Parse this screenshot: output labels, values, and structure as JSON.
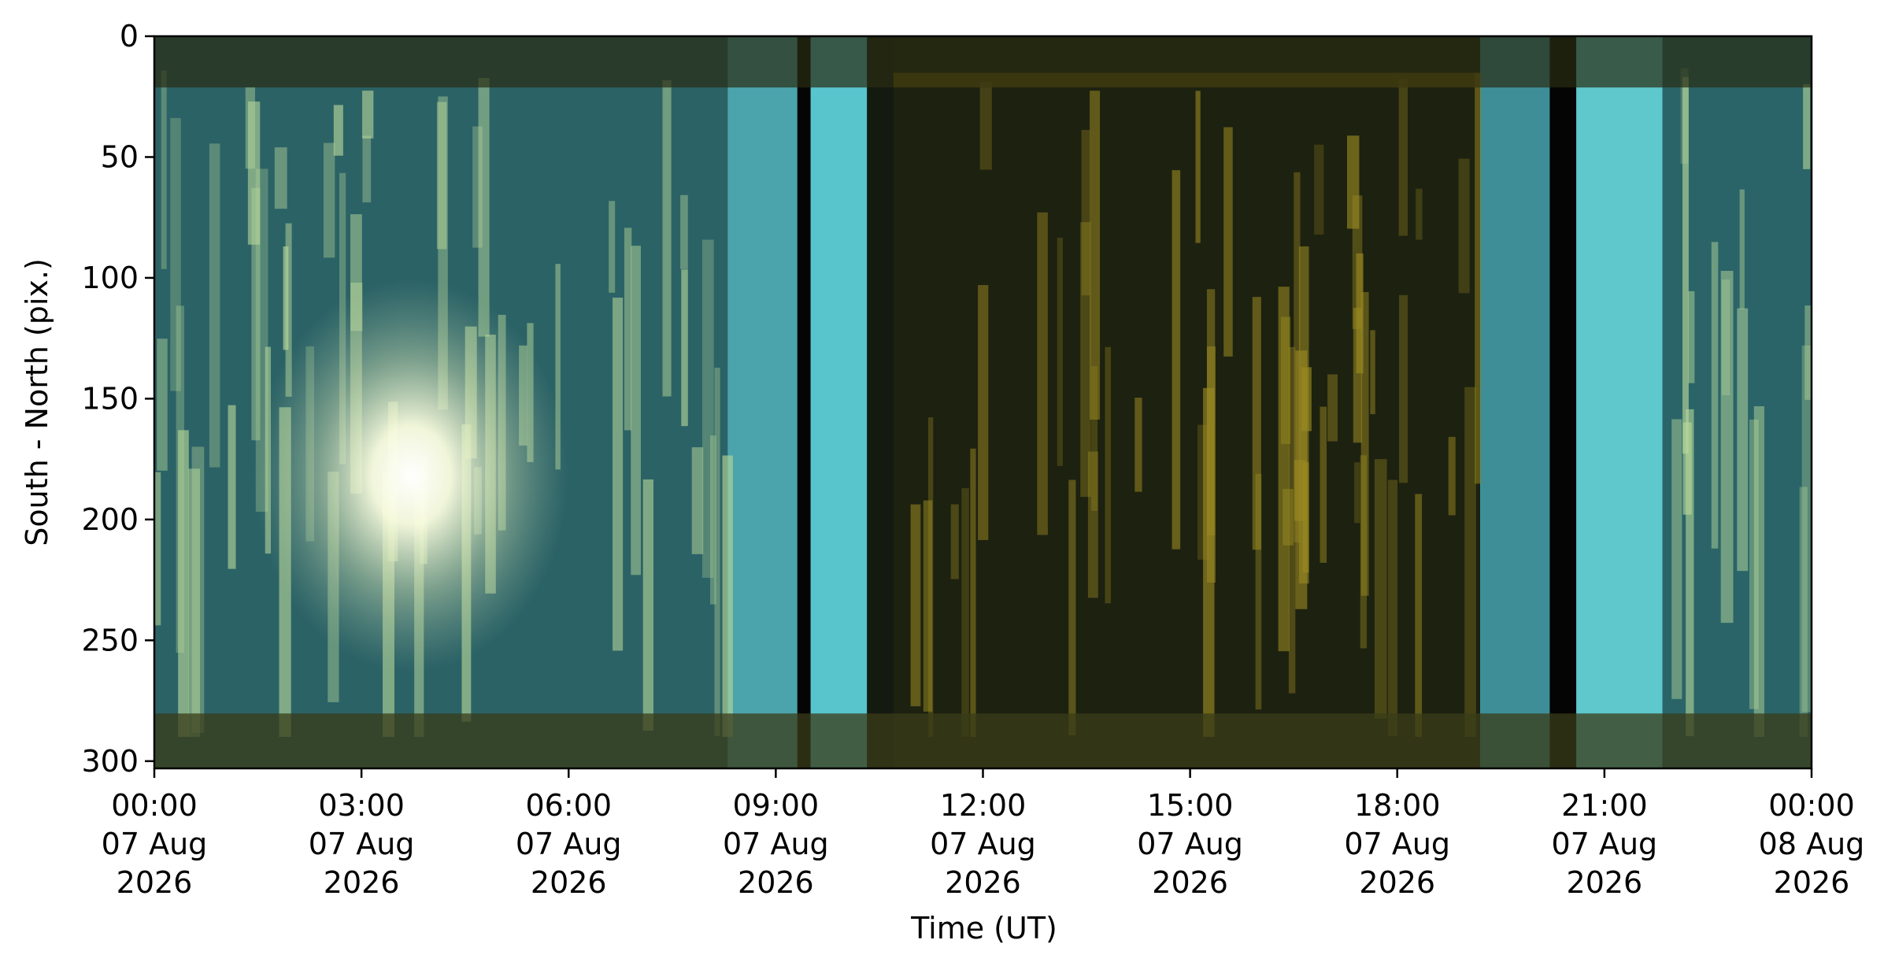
{
  "chart_data": {
    "type": "image",
    "xlabel": "Time (UT)",
    "ylabel": "South - North (pix.)",
    "xlim": [
      "2026-08-07T00:00",
      "2026-08-08T00:00"
    ],
    "xticks": [
      {
        "value": "2026-08-07T00:00",
        "label": [
          "00:00",
          "07 Aug",
          "2026"
        ]
      },
      {
        "value": "2026-08-07T03:00",
        "label": [
          "03:00",
          "07 Aug",
          "2026"
        ]
      },
      {
        "value": "2026-08-07T06:00",
        "label": [
          "06:00",
          "07 Aug",
          "2026"
        ]
      },
      {
        "value": "2026-08-07T09:00",
        "label": [
          "09:00",
          "07 Aug",
          "2026"
        ]
      },
      {
        "value": "2026-08-07T12:00",
        "label": [
          "12:00",
          "07 Aug",
          "2026"
        ]
      },
      {
        "value": "2026-08-07T15:00",
        "label": [
          "15:00",
          "07 Aug",
          "2026"
        ]
      },
      {
        "value": "2026-08-07T18:00",
        "label": [
          "18:00",
          "07 Aug",
          "2026"
        ]
      },
      {
        "value": "2026-08-07T21:00",
        "label": [
          "21:00",
          "07 Aug",
          "2026"
        ]
      },
      {
        "value": "2026-08-08T00:00",
        "label": [
          "00:00",
          "08 Aug",
          "2026"
        ]
      }
    ],
    "ylim": [
      303,
      0
    ],
    "yticks": [
      0,
      50,
      100,
      150,
      200,
      250,
      300
    ]
  }
}
